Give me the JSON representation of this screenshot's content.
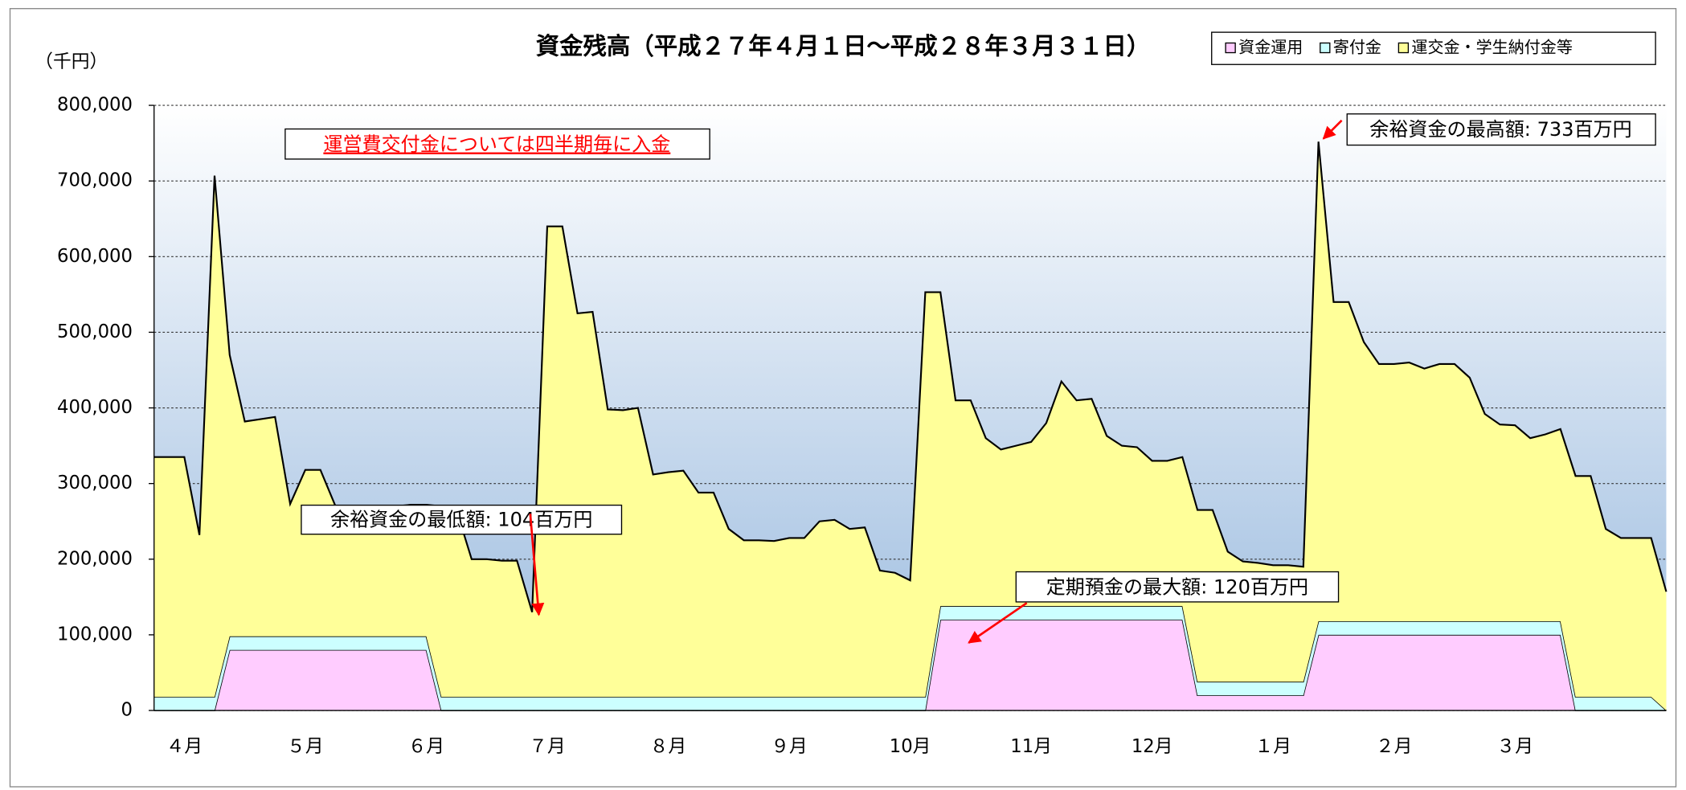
{
  "chart_data": {
    "type": "stacked-area",
    "title": "資金残高（平成２７年４月１日～平成２８年３月３１日）",
    "y_label": "（千円）",
    "categories": [
      null,
      null,
      "４月",
      null,
      null,
      null,
      null,
      null,
      null,
      null,
      "５月",
      null,
      null,
      null,
      null,
      null,
      null,
      null,
      "６月",
      null,
      null,
      null,
      null,
      null,
      null,
      null,
      "７月",
      null,
      null,
      null,
      null,
      null,
      null,
      null,
      "８月",
      null,
      null,
      null,
      null,
      null,
      null,
      null,
      "９月",
      null,
      null,
      null,
      null,
      null,
      null,
      null,
      "10月",
      null,
      null,
      null,
      null,
      null,
      null,
      null,
      "11月",
      null,
      null,
      null,
      null,
      null,
      null,
      null,
      "12月",
      null,
      null,
      null,
      null,
      null,
      null,
      null,
      "１月",
      null,
      null,
      null,
      null,
      null,
      null,
      null,
      "２月",
      null,
      null,
      null,
      null,
      null,
      null,
      null,
      "３月",
      null,
      null,
      null,
      null,
      null,
      null,
      null,
      null,
      null,
      null
    ],
    "series": [
      {
        "name": "資金運用",
        "color": "#ffccff",
        "values": [
          0,
          0,
          0,
          0,
          0,
          80000,
          80000,
          80000,
          80000,
          80000,
          80000,
          80000,
          80000,
          80000,
          80000,
          80000,
          80000,
          80000,
          80000,
          0,
          0,
          0,
          0,
          0,
          0,
          0,
          0,
          0,
          0,
          0,
          0,
          0,
          0,
          0,
          0,
          0,
          0,
          0,
          0,
          0,
          0,
          0,
          0,
          0,
          0,
          0,
          0,
          0,
          0,
          0,
          0,
          0,
          120000,
          120000,
          120000,
          120000,
          120000,
          120000,
          120000,
          120000,
          120000,
          120000,
          120000,
          120000,
          120000,
          120000,
          120000,
          120000,
          120000,
          20000,
          20000,
          20000,
          20000,
          20000,
          20000,
          20000,
          20000,
          100000,
          100000,
          100000,
          100000,
          100000,
          100000,
          100000,
          100000,
          100000,
          100000,
          100000,
          100000,
          100000,
          100000,
          100000,
          100000,
          100000,
          0,
          0,
          0,
          0,
          0,
          0,
          0
        ]
      },
      {
        "name": "寄付金",
        "color": "#ccffff",
        "values": [
          18000,
          18000,
          18000,
          18000,
          18000,
          18000,
          18000,
          18000,
          18000,
          18000,
          18000,
          18000,
          18000,
          18000,
          18000,
          18000,
          18000,
          18000,
          18000,
          18000,
          18000,
          18000,
          18000,
          18000,
          18000,
          18000,
          18000,
          18000,
          18000,
          18000,
          18000,
          18000,
          18000,
          18000,
          18000,
          18000,
          18000,
          18000,
          18000,
          18000,
          18000,
          18000,
          18000,
          18000,
          18000,
          18000,
          18000,
          18000,
          18000,
          18000,
          18000,
          18000,
          18000,
          18000,
          18000,
          18000,
          18000,
          18000,
          18000,
          18000,
          18000,
          18000,
          18000,
          18000,
          18000,
          18000,
          18000,
          18000,
          18000,
          18000,
          18000,
          18000,
          18000,
          18000,
          18000,
          18000,
          18000,
          18000,
          18000,
          18000,
          18000,
          18000,
          18000,
          18000,
          18000,
          18000,
          18000,
          18000,
          18000,
          18000,
          18000,
          18000,
          18000,
          18000,
          18000,
          18000,
          18000,
          18000,
          18000,
          18000,
          0
        ]
      },
      {
        "name": "運交金・学生納付金等",
        "color": "#ffff99",
        "values": [
          317000,
          317000,
          317000,
          214000,
          689000,
          372000,
          284000,
          287000,
          290000,
          175000,
          220000,
          220000,
          172000,
          172000,
          172000,
          172000,
          172000,
          174000,
          174000,
          252000,
          247000,
          182000,
          182000,
          180000,
          180000,
          112000,
          622000,
          622000,
          507000,
          509000,
          380000,
          379000,
          382000,
          294000,
          297000,
          299000,
          270000,
          270000,
          222000,
          207000,
          207000,
          206000,
          210000,
          210000,
          232000,
          234000,
          222000,
          224000,
          167000,
          164000,
          154000,
          535000,
          415000,
          272000,
          272000,
          222000,
          207000,
          212000,
          217000,
          242000,
          297000,
          272000,
          274000,
          225000,
          212000,
          210000,
          192000,
          192000,
          197000,
          227000,
          227000,
          172000,
          159000,
          157000,
          154000,
          154000,
          152000,
          634000,
          422000,
          422000,
          369000,
          340000,
          340000,
          342000,
          334000,
          340000,
          340000,
          322000,
          274000,
          260000,
          259000,
          242000,
          247000,
          254000,
          292000,
          292000,
          222000,
          210000,
          210000,
          210000,
          157000
        ]
      }
    ],
    "ylim": [
      0,
      800000
    ],
    "yticks": [
      0,
      {
        "value": 100000,
        "label": "100,000"
      },
      {
        "value": 200000,
        "label": "200,000"
      },
      {
        "value": 300000,
        "label": "300,000"
      },
      {
        "value": 400000,
        "label": "400,000"
      },
      {
        "value": 500000,
        "label": "500,000"
      },
      {
        "value": 600000,
        "label": "600,000"
      },
      {
        "value": 700000,
        "label": "700,000"
      },
      {
        "value": 800000,
        "label": "800,000"
      }
    ],
    "grid": true,
    "legend": "top-right",
    "annotations": [
      "運営費交付金については四半期毎に入金",
      "余裕資金の最低額: 104百万円",
      "余裕資金の最高額: 733百万円",
      "定期預金の最大額: 120百万円"
    ]
  }
}
